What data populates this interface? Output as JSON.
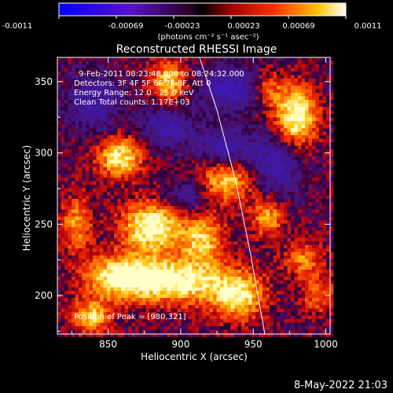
{
  "colorbar": {
    "tick_labels": [
      "-0.0011",
      "-0.00069",
      "-0.00023",
      "0.00023",
      "0.00069",
      "0.0011"
    ],
    "unit_label": "(photons cm⁻² s⁻¹ asec⁻²)",
    "range": [
      -0.0011,
      0.0011
    ]
  },
  "chart_data": {
    "type": "heatmap",
    "title": "Reconstructed RHESSI Image",
    "xlabel": "Heliocentric X (arcsec)",
    "ylabel": "Heliocentric Y (arcsec)",
    "xlim": [
      815,
      1003
    ],
    "ylim": [
      173,
      367
    ],
    "x_ticks": [
      850,
      900,
      950,
      1000
    ],
    "y_ticks": [
      200,
      250,
      300,
      350
    ],
    "x_tick_labels": [
      "850",
      "900",
      "950",
      "1000"
    ],
    "y_tick_labels": [
      "200",
      "250",
      "300",
      "350"
    ],
    "annotations": [
      "9-Feb-2011 08:23:48.000 to 08:24:32.000",
      "Detectors: 3F 4F 5F 6F 7F 8F, Att 0",
      "Energy Range: 12.0 - 25.0 keV",
      "Clean     Total counts: 1.17E+03"
    ],
    "peak_label": "Position of Peak = [980,321]",
    "peak_position": [
      980,
      321
    ],
    "limb_curve": [
      [
        913,
        367
      ],
      [
        925,
        330
      ],
      [
        938,
        280
      ],
      [
        948,
        230
      ],
      [
        958,
        173
      ]
    ],
    "hot_spots": [
      {
        "x": 880,
        "y": 248,
        "amp": 1.0,
        "sx": 14,
        "sy": 12
      },
      {
        "x": 860,
        "y": 213,
        "amp": 0.95,
        "sx": 18,
        "sy": 11
      },
      {
        "x": 900,
        "y": 210,
        "amp": 0.9,
        "sx": 22,
        "sy": 11
      },
      {
        "x": 940,
        "y": 200,
        "amp": 0.8,
        "sx": 13,
        "sy": 12
      },
      {
        "x": 980,
        "y": 326,
        "amp": 1.0,
        "sx": 10,
        "sy": 14
      },
      {
        "x": 858,
        "y": 297,
        "amp": 0.85,
        "sx": 11,
        "sy": 10
      },
      {
        "x": 892,
        "y": 350,
        "amp": 0.75,
        "sx": 9,
        "sy": 10
      },
      {
        "x": 932,
        "y": 280,
        "amp": 0.7,
        "sx": 14,
        "sy": 10
      },
      {
        "x": 915,
        "y": 240,
        "amp": 0.7,
        "sx": 11,
        "sy": 12
      },
      {
        "x": 960,
        "y": 255,
        "amp": 0.6,
        "sx": 8,
        "sy": 10
      },
      {
        "x": 828,
        "y": 250,
        "amp": 0.55,
        "sx": 8,
        "sy": 14
      },
      {
        "x": 985,
        "y": 225,
        "amp": 0.5,
        "sx": 10,
        "sy": 9
      },
      {
        "x": 960,
        "y": 345,
        "amp": 0.5,
        "sx": 8,
        "sy": 9
      },
      {
        "x": 838,
        "y": 185,
        "amp": 0.7,
        "sx": 10,
        "sy": 8
      },
      {
        "x": 995,
        "y": 200,
        "amp": 0.45,
        "sx": 8,
        "sy": 9
      }
    ],
    "cold_spots": [
      {
        "x": 935,
        "y": 345,
        "amp": 0.6,
        "sx": 16,
        "sy": 10
      },
      {
        "x": 930,
        "y": 305,
        "amp": 0.5,
        "sx": 14,
        "sy": 10
      },
      {
        "x": 890,
        "y": 318,
        "amp": 0.5,
        "sx": 12,
        "sy": 10
      },
      {
        "x": 965,
        "y": 290,
        "amp": 0.55,
        "sx": 12,
        "sy": 14
      },
      {
        "x": 840,
        "y": 335,
        "amp": 0.45,
        "sx": 12,
        "sy": 14
      },
      {
        "x": 905,
        "y": 270,
        "amp": 0.4,
        "sx": 10,
        "sy": 8
      }
    ],
    "grid": false
  },
  "footer": {
    "timestamp": "8-May-2022 21:03"
  },
  "colors": {
    "background": "#000000",
    "foreground": "#ffffff"
  }
}
